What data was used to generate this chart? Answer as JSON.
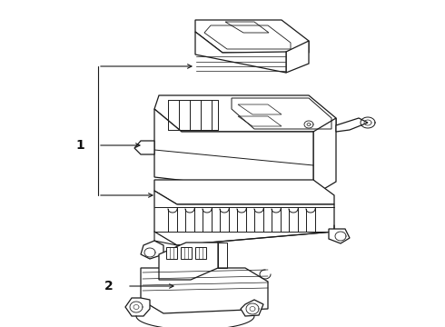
{
  "bg_color": "#ffffff",
  "line_color": "#1a1a1a",
  "label_color": "#111111",
  "labels": [
    "1",
    "2"
  ],
  "title": "",
  "figsize": [
    4.9,
    3.6
  ],
  "dpi": 100
}
